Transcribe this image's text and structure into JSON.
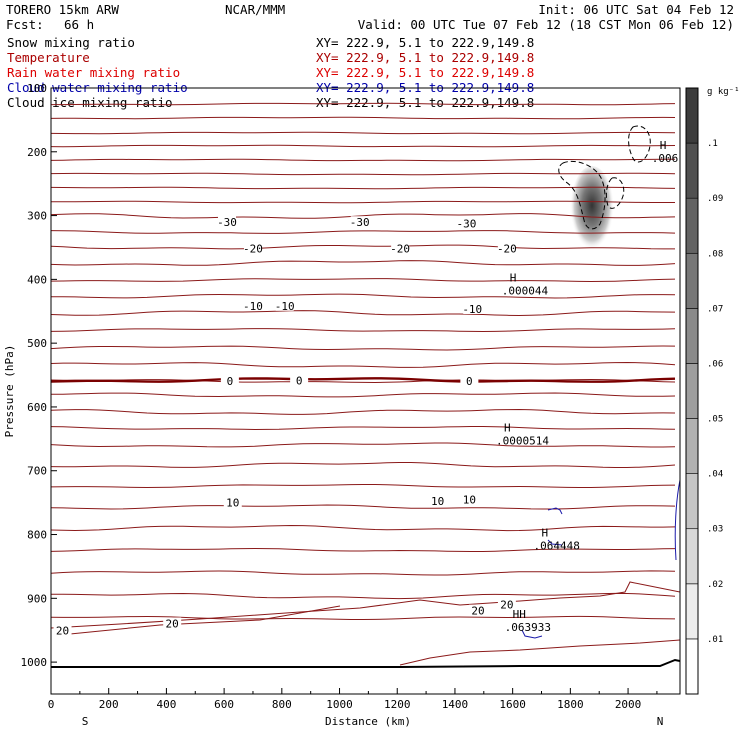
{
  "header": {
    "model": "TORERO  15km ARW",
    "org": "NCAR/MMM",
    "init": "Init: 06 UTC Sat 04 Feb 12",
    "fcst_label": "Fcst:",
    "fcst_value": "66 h",
    "valid": "Valid: 00 UTC Tue 07 Feb 12 (18 CST Mon 06 Feb 12)"
  },
  "fields": [
    {
      "name": "Snow mixing ratio",
      "xy": "XY= 222.9,  5.1 to 222.9,149.8",
      "color": "#000000"
    },
    {
      "name": "Temperature",
      "xy": "XY= 222.9,  5.1 to 222.9,149.8",
      "color": "#aa0000"
    },
    {
      "name": "Rain water mixing ratio",
      "xy": "XY= 222.9,  5.1 to 222.9,149.8",
      "color": "#dd0000"
    },
    {
      "name": "Cloud water mixing ratio",
      "xy": "XY= 222.9,  5.1 to 222.9,149.8",
      "color": "#0000aa"
    },
    {
      "name": "Cloud ice mixing ratio",
      "xy": "XY= 222.9,  5.1 to 222.9,149.8",
      "color": "#000000"
    }
  ],
  "chart_data": {
    "type": "contour cross-section",
    "xlabel": "Distance (km)",
    "ylabel": "Pressure (hPa)",
    "x_end_labels": {
      "left": "S",
      "right": "N"
    },
    "xlim": [
      0,
      2180
    ],
    "ylim": [
      1050,
      100
    ],
    "x_ticks": [
      0,
      200,
      400,
      600,
      800,
      1000,
      1200,
      1400,
      1600,
      1800,
      2000
    ],
    "y_ticks": [
      100,
      200,
      300,
      400,
      500,
      600,
      700,
      800,
      900,
      1000
    ],
    "temperature_labels": [
      {
        "text": "-30",
        "x": 610,
        "p": 312
      },
      {
        "text": "-30",
        "x": 1070,
        "p": 312
      },
      {
        "text": "-30",
        "x": 1440,
        "p": 314
      },
      {
        "text": "-20",
        "x": 700,
        "p": 353
      },
      {
        "text": "-20",
        "x": 1210,
        "p": 353
      },
      {
        "text": "-20",
        "x": 1580,
        "p": 353
      },
      {
        "text": "-10",
        "x": 700,
        "p": 443
      },
      {
        "text": "-10",
        "x": 810,
        "p": 443
      },
      {
        "text": "-10",
        "x": 1460,
        "p": 448
      },
      {
        "text": "0",
        "x": 620,
        "p": 561
      },
      {
        "text": "0",
        "x": 860,
        "p": 560
      },
      {
        "text": "0",
        "x": 1450,
        "p": 561
      },
      {
        "text": "10",
        "x": 630,
        "p": 751
      },
      {
        "text": "10",
        "x": 1340,
        "p": 749
      },
      {
        "text": "10",
        "x": 1450,
        "p": 747
      },
      {
        "text": "20",
        "x": 420,
        "p": 941
      },
      {
        "text": "20",
        "x": 1480,
        "p": 921
      },
      {
        "text": "20",
        "x": 1580,
        "p": 911
      },
      {
        "text": "20",
        "x": 40,
        "p": 952
      }
    ],
    "extrema_labels": [
      {
        "mark": "H",
        "value": ".006",
        "x": 2110,
        "p": 202,
        "series": "Cloud ice mixing ratio"
      },
      {
        "mark": "H",
        "value": ".000044",
        "x": 1590,
        "p": 410,
        "series": "Snow mixing ratio"
      },
      {
        "mark": "H",
        "value": ".0000514",
        "x": 1570,
        "p": 645,
        "series": "Rain water mixing ratio"
      },
      {
        "mark": "H",
        "value": ".064448",
        "x": 1700,
        "p": 809,
        "series": "Cloud water mixing ratio"
      },
      {
        "mark": "HH",
        "value": ".063933",
        "x": 1600,
        "p": 937,
        "series": "Rain water mixing ratio"
      }
    ],
    "colorbar": {
      "unit": "g kg⁻¹",
      "levels": [
        ".01",
        ".02",
        ".03",
        ".04",
        ".05",
        ".06",
        ".07",
        ".08",
        ".09",
        ".1"
      ]
    },
    "colors": {
      "temperature": "#8b1a1a",
      "zero_isotherm": "#7a0000",
      "cloud_water": "#1a1aaa",
      "rain": "#cc1111",
      "ground": "#000000"
    }
  }
}
